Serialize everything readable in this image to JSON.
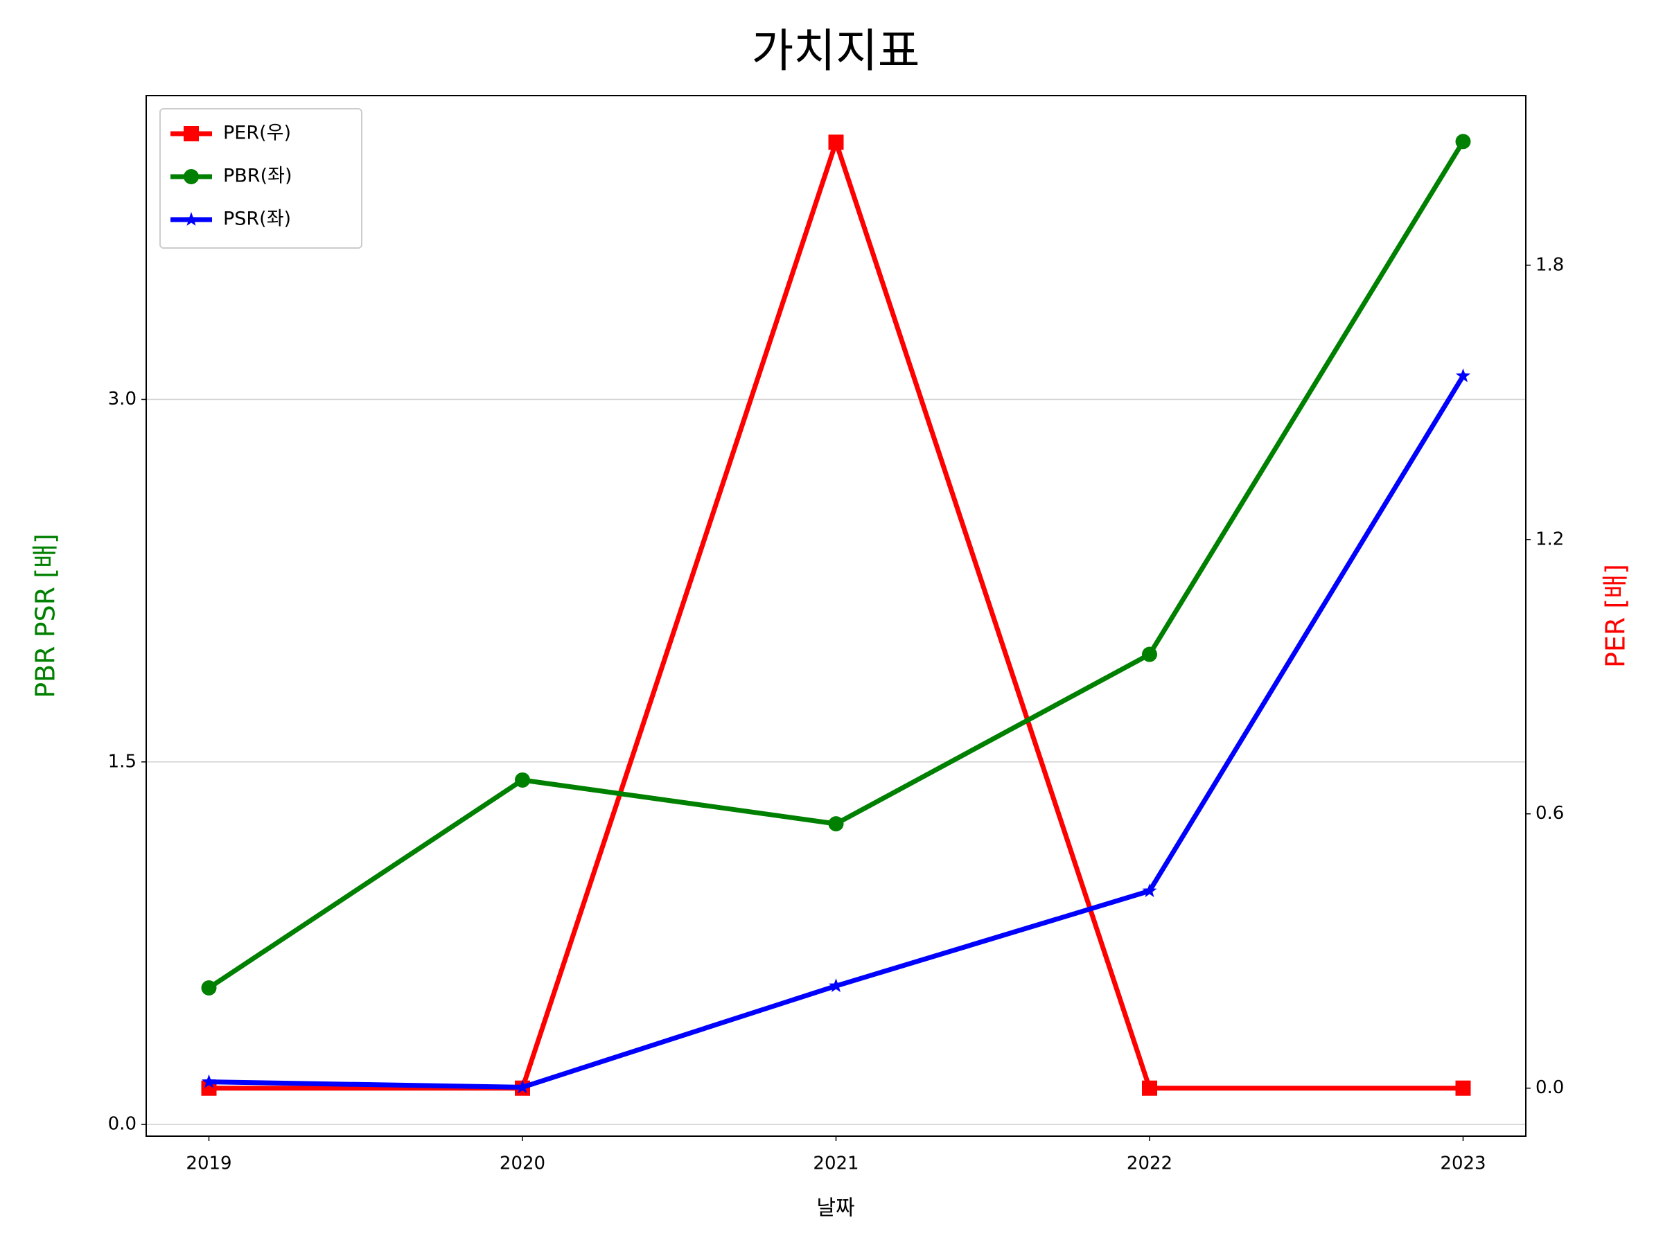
{
  "chart_data": {
    "type": "line",
    "title": "가치지표",
    "x_label": "날짜",
    "y_label": "PBR PSR [배]",
    "y2_label": "PER [배]",
    "y_label_color": "green",
    "y2_label_color": "red",
    "x": [
      2019,
      2020,
      2021,
      2022,
      2023
    ],
    "xlim": [
      2018.8,
      2023.2
    ],
    "xticks": [
      2019,
      2020,
      2021,
      2022,
      2023
    ],
    "ylim": [
      -0.0485,
      4.257
    ],
    "yticks": [
      {
        "value": 0,
        "label": "0.0"
      },
      1.5,
      {
        "value": 3,
        "label": "3.0"
      }
    ],
    "y2lim": [
      -0.105,
      2.171
    ],
    "y2ticks": [
      {
        "value": 0,
        "label": "0.0"
      },
      0.6,
      1.2,
      1.8
    ],
    "grid": true,
    "legend": "upper left",
    "series": [
      {
        "name": "PER(우)",
        "color": "#ff0000",
        "marker": "square",
        "axis": "y2",
        "values": [
          0,
          0,
          2.069,
          0,
          0
        ]
      },
      {
        "name": "PBR(좌)",
        "color": "#008000",
        "marker": "circle",
        "values": [
          0.565,
          1.425,
          1.244,
          1.945,
          4.067
        ]
      },
      {
        "name": "PSR(좌)",
        "color": "#0000ff",
        "marker": "star",
        "values": [
          0.176,
          0.154,
          0.573,
          0.966,
          3.097
        ]
      }
    ]
  }
}
